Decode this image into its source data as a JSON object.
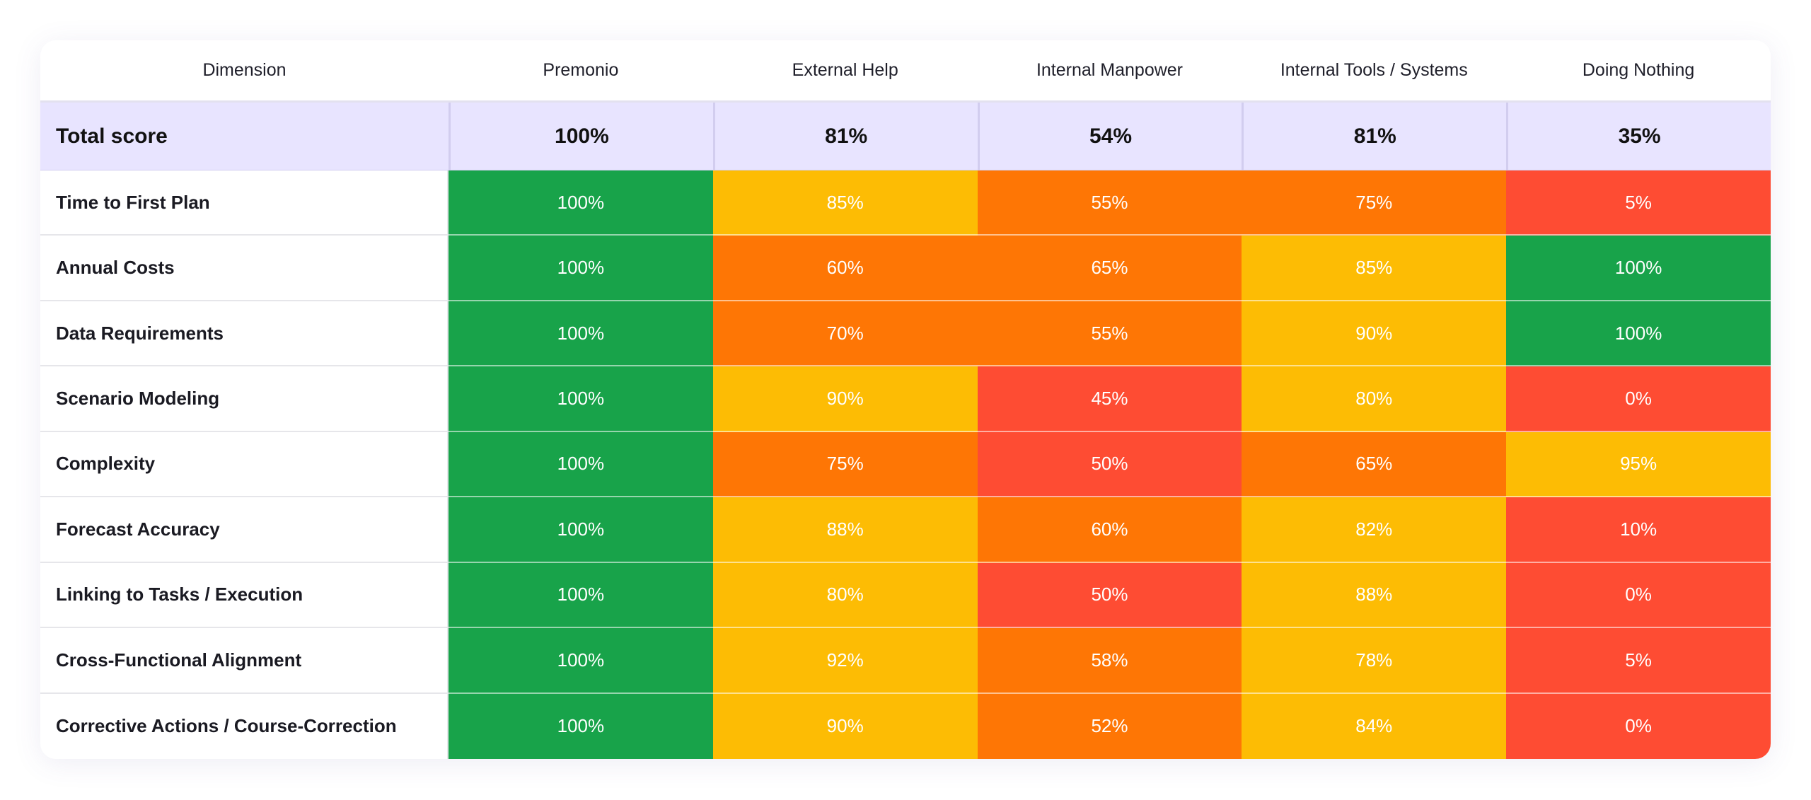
{
  "table": {
    "header": [
      "Dimension",
      "Premonio",
      "External Help",
      "Internal Manpower",
      "Internal Tools / Systems",
      "Doing Nothing"
    ],
    "total": {
      "label": "Total score",
      "cells": [
        "100%",
        "81%",
        "54%",
        "81%",
        "35%"
      ]
    },
    "rows": [
      {
        "label": "Time to First Plan",
        "cells": [
          "100%",
          "85%",
          "55%",
          "75%",
          "5%"
        ],
        "colors": [
          "#18a34a",
          "#fdbc04",
          "#fe7605",
          "#fe7605",
          "#fe4c33"
        ]
      },
      {
        "label": "Annual Costs",
        "cells": [
          "100%",
          "60%",
          "65%",
          "85%",
          "100%"
        ],
        "colors": [
          "#18a34a",
          "#fe7605",
          "#fe7605",
          "#fdbc04",
          "#18a34a"
        ]
      },
      {
        "label": "Data Requirements",
        "cells": [
          "100%",
          "70%",
          "55%",
          "90%",
          "100%"
        ],
        "colors": [
          "#18a34a",
          "#fe7605",
          "#fe7605",
          "#fdbc04",
          "#18a34a"
        ]
      },
      {
        "label": "Scenario Modeling",
        "cells": [
          "100%",
          "90%",
          "45%",
          "80%",
          "0%"
        ],
        "colors": [
          "#18a34a",
          "#fdbc04",
          "#fe4c33",
          "#fdbc04",
          "#fe4c33"
        ]
      },
      {
        "label": "Complexity",
        "cells": [
          "100%",
          "75%",
          "50%",
          "65%",
          "95%"
        ],
        "colors": [
          "#18a34a",
          "#fe7605",
          "#fe4c33",
          "#fe7605",
          "#fdbc04"
        ]
      },
      {
        "label": "Forecast Accuracy",
        "cells": [
          "100%",
          "88%",
          "60%",
          "82%",
          "10%"
        ],
        "colors": [
          "#18a34a",
          "#fdbc04",
          "#fe7605",
          "#fdbc04",
          "#fe4c33"
        ]
      },
      {
        "label": "Linking to Tasks / Execution",
        "cells": [
          "100%",
          "80%",
          "50%",
          "88%",
          "0%"
        ],
        "colors": [
          "#18a34a",
          "#fdbc04",
          "#fe4c33",
          "#fdbc04",
          "#fe4c33"
        ]
      },
      {
        "label": "Cross-Functional Alignment",
        "cells": [
          "100%",
          "92%",
          "58%",
          "78%",
          "5%"
        ],
        "colors": [
          "#18a34a",
          "#fdbc04",
          "#fe7605",
          "#fdbc04",
          "#fe4c33"
        ]
      },
      {
        "label": "Corrective Actions / Course-Correction",
        "cells": [
          "100%",
          "90%",
          "52%",
          "84%",
          "0%"
        ],
        "colors": [
          "#18a34a",
          "#fdbc04",
          "#fe7605",
          "#fdbc04",
          "#fe4c33"
        ]
      }
    ]
  }
}
